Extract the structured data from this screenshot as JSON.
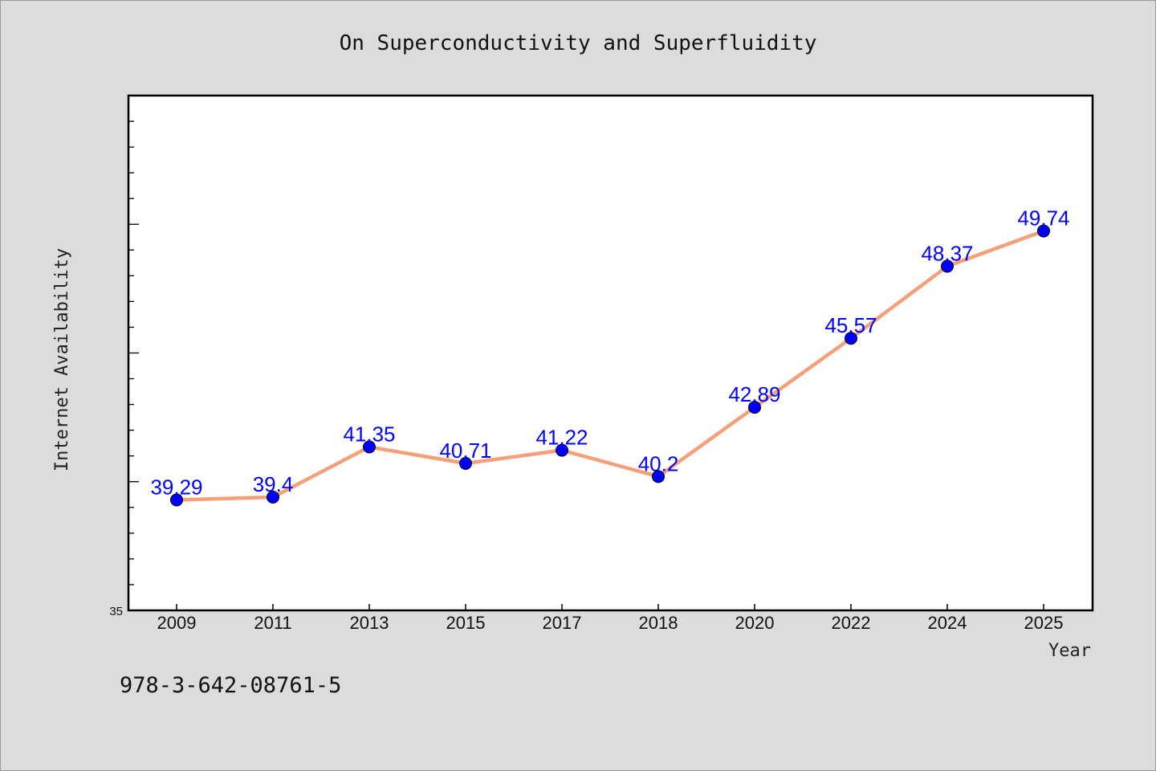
{
  "chart_data": {
    "type": "line",
    "title": "On Superconductivity and Superfluidity",
    "xlabel": "Year",
    "ylabel": "Internet Availability",
    "categories": [
      "2009",
      "2011",
      "2013",
      "2015",
      "2017",
      "2018",
      "2020",
      "2022",
      "2024",
      "2025"
    ],
    "series": [
      {
        "values": [
          39.29,
          39.4,
          41.35,
          40.71,
          41.22,
          40.2,
          42.89,
          45.57,
          48.37,
          49.74
        ],
        "labels": [
          "39.29",
          "39.4",
          "41.35",
          "40.71",
          "41.22",
          "40.2",
          "42.89",
          "45.57",
          "48.37",
          "49.74"
        ],
        "line_color": "#f4a07a",
        "marker_color": "#0000ff"
      }
    ],
    "ylim": [
      35,
      55
    ],
    "y_tick_label": "35",
    "legend": "none",
    "grid": false
  },
  "footer": {
    "isbn": "978-3-642-08761-5"
  }
}
